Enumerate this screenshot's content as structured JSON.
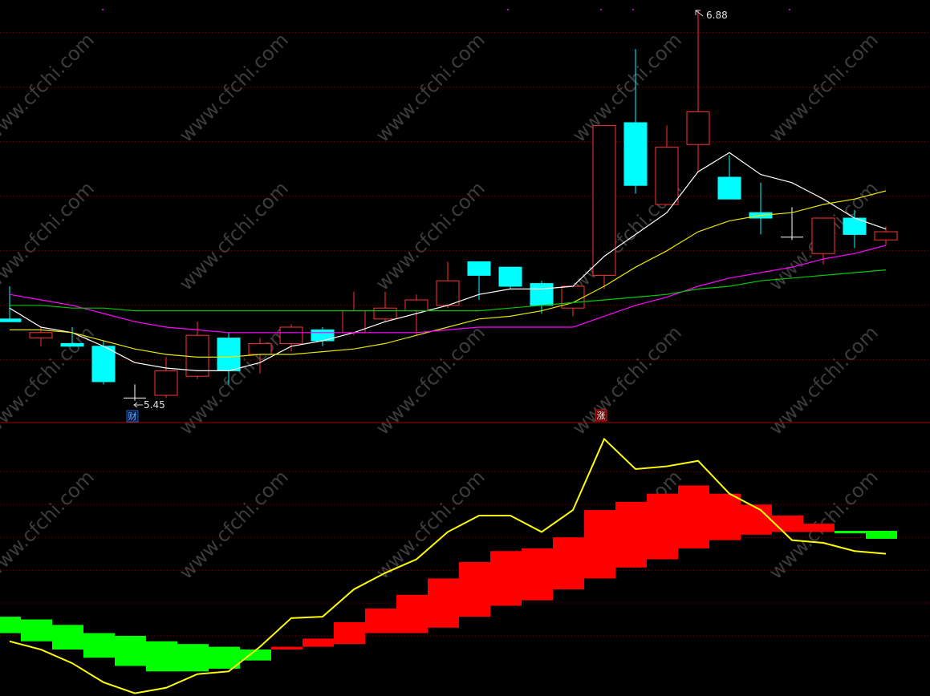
{
  "chart_data": [
    {
      "type": "candlestick",
      "open": [
        5.75,
        5.68,
        5.66,
        5.65,
        5.46,
        5.47,
        5.54,
        5.68,
        5.62,
        5.66,
        5.71,
        5.7,
        5.75,
        5.78,
        5.8,
        5.96,
        5.94,
        5.88,
        5.79,
        5.91,
        6.47,
        6.17,
        6.39,
        6.27,
        6.14,
        6.05,
        5.99,
        6.12,
        6.04
      ],
      "close": [
        5.74,
        5.7,
        5.65,
        5.52,
        5.46,
        5.56,
        5.69,
        5.56,
        5.66,
        5.72,
        5.67,
        5.78,
        5.79,
        5.82,
        5.89,
        5.91,
        5.87,
        5.8,
        5.87,
        6.46,
        6.24,
        6.38,
        6.51,
        6.19,
        6.12,
        6.05,
        6.12,
        6.06,
        6.07
      ],
      "high": [
        5.87,
        5.72,
        5.72,
        5.67,
        5.51,
        5.61,
        5.74,
        5.7,
        5.68,
        5.73,
        5.72,
        5.85,
        5.85,
        5.84,
        5.96,
        5.96,
        5.94,
        5.89,
        5.87,
        6.46,
        6.74,
        6.46,
        6.88,
        6.35,
        6.25,
        6.16,
        6.12,
        6.15,
        6.09
      ],
      "low": [
        5.74,
        5.65,
        5.65,
        5.51,
        5.45,
        5.46,
        5.53,
        5.51,
        5.55,
        5.63,
        5.65,
        5.69,
        5.74,
        5.69,
        5.79,
        5.82,
        5.86,
        5.77,
        5.76,
        5.86,
        6.21,
        6.17,
        6.29,
        6.19,
        6.06,
        6.04,
        5.95,
        6.01,
        6.02
      ],
      "up_color": "#ff3232",
      "down_color": "#00ffff",
      "flat_color": "#ffffff",
      "series": [
        {
          "color": "#ffffff",
          "values": [
            5.79,
            5.72,
            5.7,
            5.65,
            5.59,
            5.57,
            5.56,
            5.56,
            5.59,
            5.65,
            5.67,
            5.7,
            5.74,
            5.77,
            5.8,
            5.84,
            5.86,
            5.86,
            5.87,
            5.98,
            6.06,
            6.14,
            6.29,
            6.36,
            6.28,
            6.25,
            6.19,
            6.12,
            6.08
          ]
        },
        {
          "color": "#e6e600",
          "values": [
            5.71,
            5.71,
            5.7,
            5.67,
            5.64,
            5.62,
            5.61,
            5.61,
            5.62,
            5.62,
            5.63,
            5.64,
            5.66,
            5.69,
            5.72,
            5.75,
            5.76,
            5.78,
            5.81,
            5.87,
            5.94,
            6.0,
            6.07,
            6.11,
            6.13,
            6.14,
            6.17,
            6.19,
            6.22
          ]
        },
        {
          "color": "#ff00ff",
          "values": [
            5.84,
            5.82,
            5.8,
            5.77,
            5.74,
            5.72,
            5.71,
            5.7,
            5.7,
            5.7,
            5.7,
            5.7,
            5.7,
            5.7,
            5.71,
            5.72,
            5.72,
            5.72,
            5.72,
            5.76,
            5.8,
            5.83,
            5.87,
            5.9,
            5.92,
            5.94,
            5.97,
            5.99,
            6.02
          ]
        },
        {
          "color": "#00c800",
          "values": [
            5.8,
            5.8,
            5.79,
            5.79,
            5.78,
            5.78,
            5.78,
            5.78,
            5.78,
            5.78,
            5.78,
            5.78,
            5.78,
            5.78,
            5.78,
            5.78,
            5.79,
            5.8,
            5.81,
            5.82,
            5.83,
            5.84,
            5.86,
            5.87,
            5.89,
            5.9,
            5.91,
            5.92,
            5.93
          ]
        }
      ],
      "ylim": [
        5.37,
        6.92
      ],
      "yticks": [
        5.6,
        5.8,
        6,
        6.2,
        6.4,
        6.6,
        6.8
      ],
      "grid": true,
      "annotations": [
        "6.88",
        "5.45"
      ],
      "markers": [
        "财",
        "涨"
      ],
      "watermark": "www.cfchi.com"
    },
    {
      "type": "indicator",
      "bars": {
        "top": [
          29,
          28,
          26,
          23,
          22,
          20,
          19,
          18,
          17,
          18,
          21,
          27,
          32,
          37,
          43,
          49,
          53,
          54,
          58,
          68,
          71,
          74,
          77,
          74,
          70,
          66,
          63,
          60.4,
          60.4
        ],
        "bottom": [
          23,
          20,
          17,
          14,
          11,
          9,
          9,
          10,
          13,
          17,
          18,
          19,
          23,
          23,
          25,
          29,
          33,
          35,
          39,
          43,
          47,
          50,
          54,
          57,
          59,
          60,
          60,
          59.5,
          57.5
        ],
        "colors": [
          "#00ff00",
          "#00ff00",
          "#00ff00",
          "#00ff00",
          "#00ff00",
          "#00ff00",
          "#00ff00",
          "#00ff00",
          "#00ff00",
          "#ff0000",
          "#ff0000",
          "#ff0000",
          "#ff0000",
          "#ff0000",
          "#ff0000",
          "#ff0000",
          "#ff0000",
          "#ff0000",
          "#ff0000",
          "#ff0000",
          "#ff0000",
          "#ff0000",
          "#ff0000",
          "#ff0000",
          "#ff0000",
          "#ff0000",
          "#ff0000",
          "#00ff00",
          "#00ff00"
        ]
      },
      "series": [
        {
          "color": "#ffff00",
          "values": [
            20,
            17,
            12,
            5,
            1,
            3,
            8,
            9,
            18,
            28.5,
            29,
            39,
            45,
            50,
            60,
            66,
            66,
            60,
            68,
            94,
            83,
            84,
            86,
            74,
            68,
            57,
            56,
            53,
            52
          ]
        }
      ],
      "ylim": [
        0,
        100
      ],
      "yticks": [
        22,
        34,
        46,
        58,
        70,
        82
      ],
      "grid": true
    }
  ]
}
